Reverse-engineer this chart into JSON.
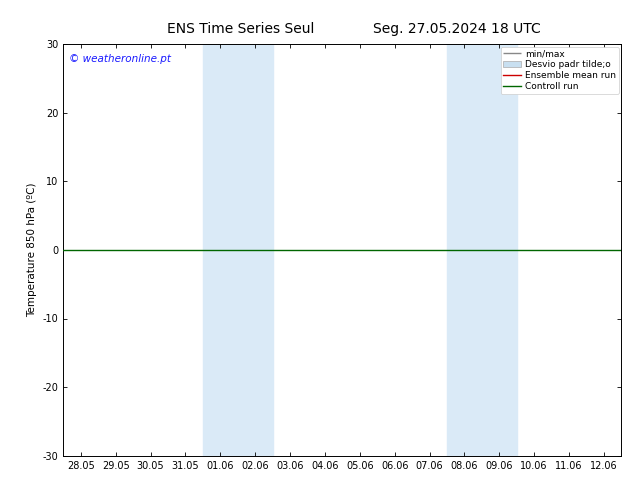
{
  "title_left": "ENS Time Series Seul",
  "title_right": "Seg. 27.05.2024 18 UTC",
  "ylabel": "Temperature 850 hPa (ºC)",
  "watermark": "© weatheronline.pt",
  "watermark_color": "#1a1aff",
  "ylim": [
    -30,
    30
  ],
  "yticks": [
    -30,
    -20,
    -10,
    0,
    10,
    20,
    30
  ],
  "x_tick_labels": [
    "28.05",
    "29.05",
    "30.05",
    "31.05",
    "01.06",
    "02.06",
    "03.06",
    "04.06",
    "05.06",
    "06.06",
    "07.06",
    "08.06",
    "09.06",
    "10.06",
    "11.06",
    "12.06"
  ],
  "shade_bands": [
    {
      "start": 4,
      "end": 6
    },
    {
      "start": 11,
      "end": 13
    }
  ],
  "shade_color": "#daeaf7",
  "zero_line_color": "#006600",
  "ensemble_mean_color": "#cc0000",
  "bg_color": "#ffffff",
  "title_fontsize": 10,
  "tick_fontsize": 7,
  "ylabel_fontsize": 7.5,
  "legend_fontsize": 6.5,
  "watermark_fontsize": 7.5
}
